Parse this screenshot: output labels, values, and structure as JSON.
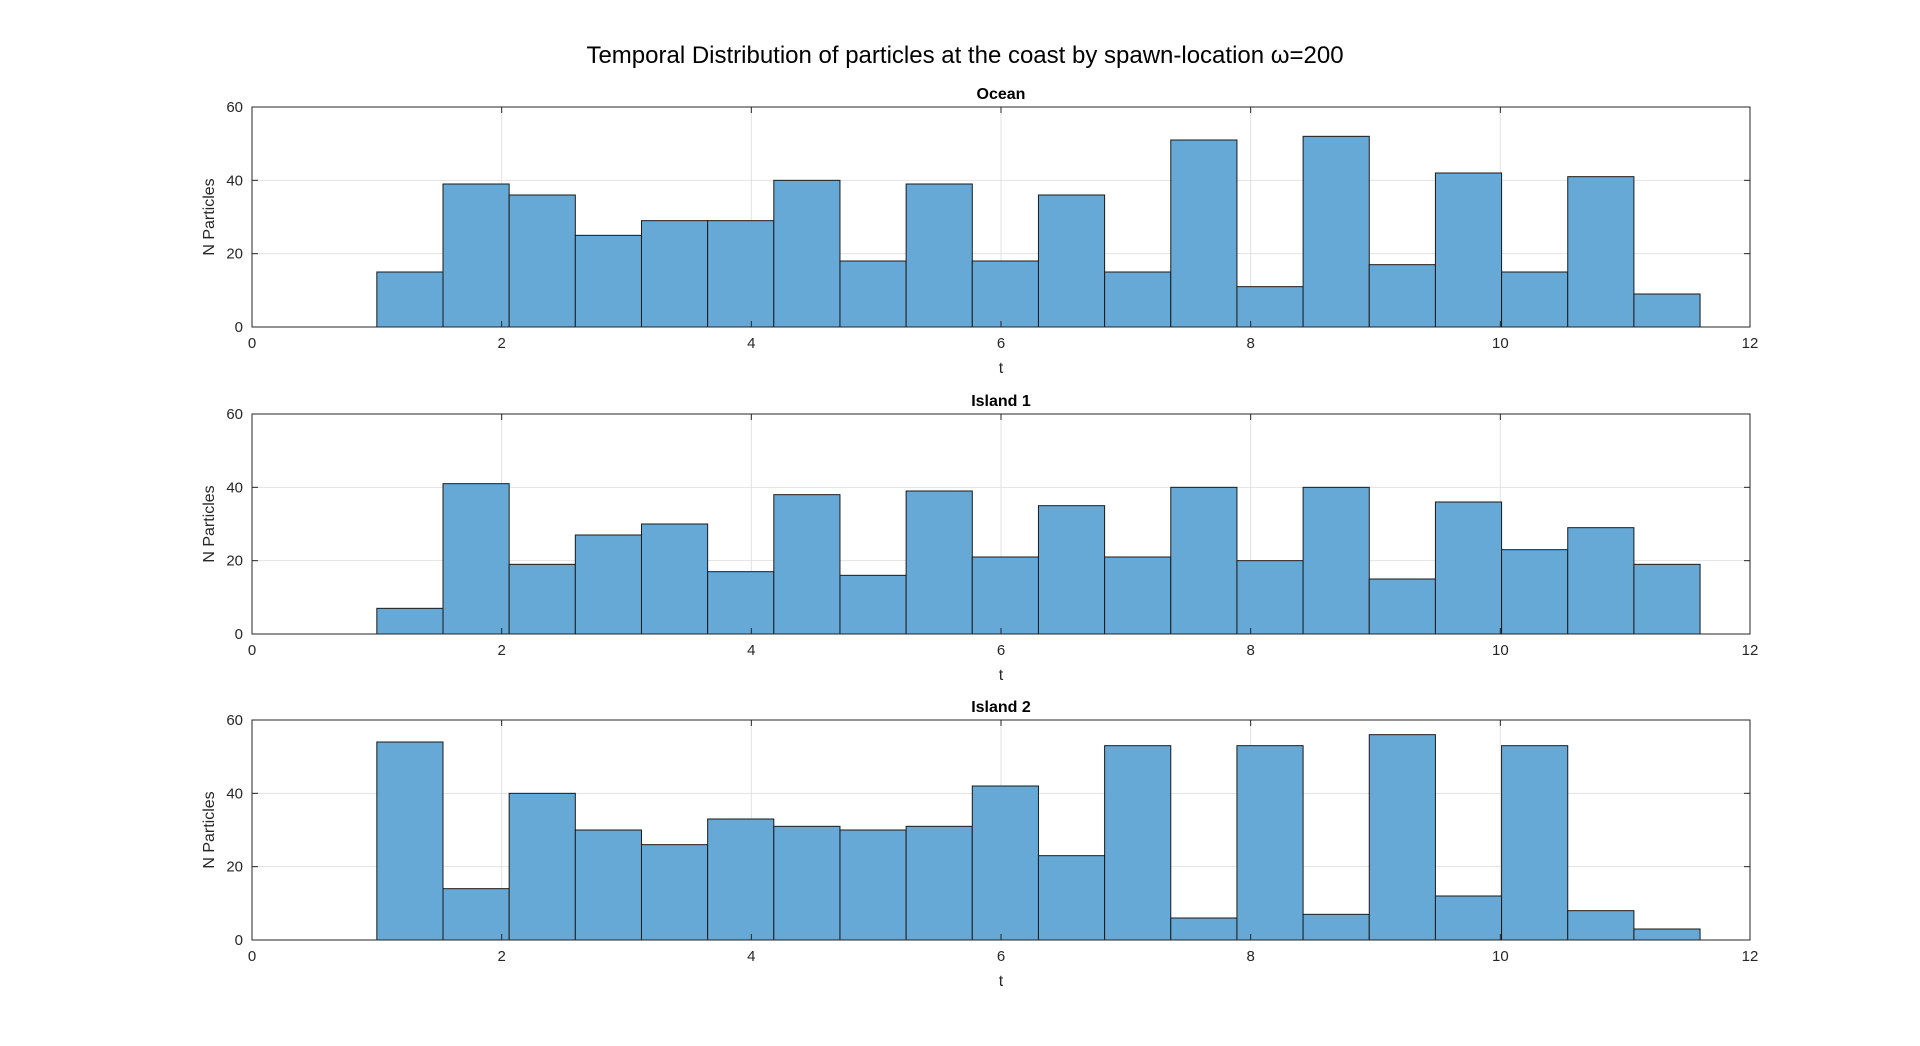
{
  "chart_data": {
    "type": "bar",
    "title": "Temporal Distribution of particles at the coast  by spawn-location ω=200",
    "bar_color": "#66a9d7",
    "grid": true,
    "bin_edges": [
      1.0,
      1.53,
      2.06,
      2.59,
      3.12,
      3.65,
      4.18,
      4.71,
      5.24,
      5.77,
      6.3,
      6.83,
      7.36,
      7.89,
      8.42,
      8.95,
      9.48,
      10.01,
      10.54,
      11.07,
      11.6
    ],
    "xlim": [
      0,
      12
    ],
    "ylim": [
      0,
      60
    ],
    "xticks": [
      "0",
      "2",
      "4",
      "6",
      "8",
      "10",
      "12"
    ],
    "yticks": [
      "0",
      "20",
      "40",
      "60"
    ],
    "panels": [
      {
        "title": "Ocean",
        "xlabel": "t",
        "ylabel": "N Particles",
        "values": [
          15,
          39,
          36,
          25,
          29,
          29,
          40,
          18,
          39,
          18,
          36,
          15,
          51,
          11,
          52,
          17,
          42,
          15,
          41,
          9
        ]
      },
      {
        "title": "Island 1",
        "xlabel": "t",
        "ylabel": "N Particles",
        "values": [
          7,
          41,
          19,
          27,
          30,
          17,
          38,
          16,
          39,
          21,
          35,
          21,
          40,
          20,
          40,
          15,
          36,
          23,
          29,
          19
        ]
      },
      {
        "title": "Island 2",
        "xlabel": "t",
        "ylabel": "N Particles",
        "values": [
          54,
          14,
          40,
          30,
          26,
          33,
          31,
          30,
          31,
          42,
          23,
          53,
          6,
          53,
          7,
          56,
          12,
          53,
          8,
          3
        ]
      }
    ]
  }
}
